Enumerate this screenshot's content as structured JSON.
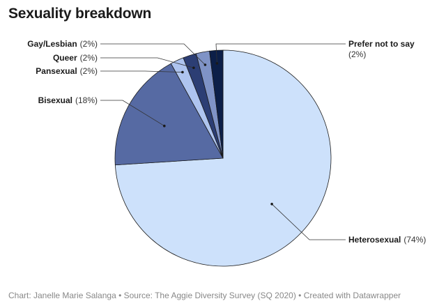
{
  "title": "Sexuality breakdown",
  "footer": "Chart: Janelle Marie Salanga • Source: The Aggie Diversity Survey (SQ 2020) • Created with Datawrapper",
  "chart_data": {
    "type": "pie",
    "title": "Sexuality breakdown",
    "start_angle_deg": 0,
    "direction": "clockwise",
    "slices": [
      {
        "label": "Heterosexual",
        "pct_label": "(74%)",
        "value": 74,
        "color": "#cde1fb"
      },
      {
        "label": "Bisexual",
        "pct_label": "(18%)",
        "value": 18,
        "color": "#566aa3"
      },
      {
        "label": "Pansexual",
        "pct_label": "(2%)",
        "value": 2,
        "color": "#aec4ef"
      },
      {
        "label": "Queer",
        "pct_label": "(2%)",
        "value": 2,
        "color": "#2c3e74"
      },
      {
        "label": "Gay/Lesbian",
        "pct_label": "(2%)",
        "value": 2,
        "color": "#7f93c6"
      },
      {
        "label": "Prefer not to say",
        "pct_label": "(2%)",
        "value": 2,
        "color": "#0c1f48"
      }
    ]
  }
}
